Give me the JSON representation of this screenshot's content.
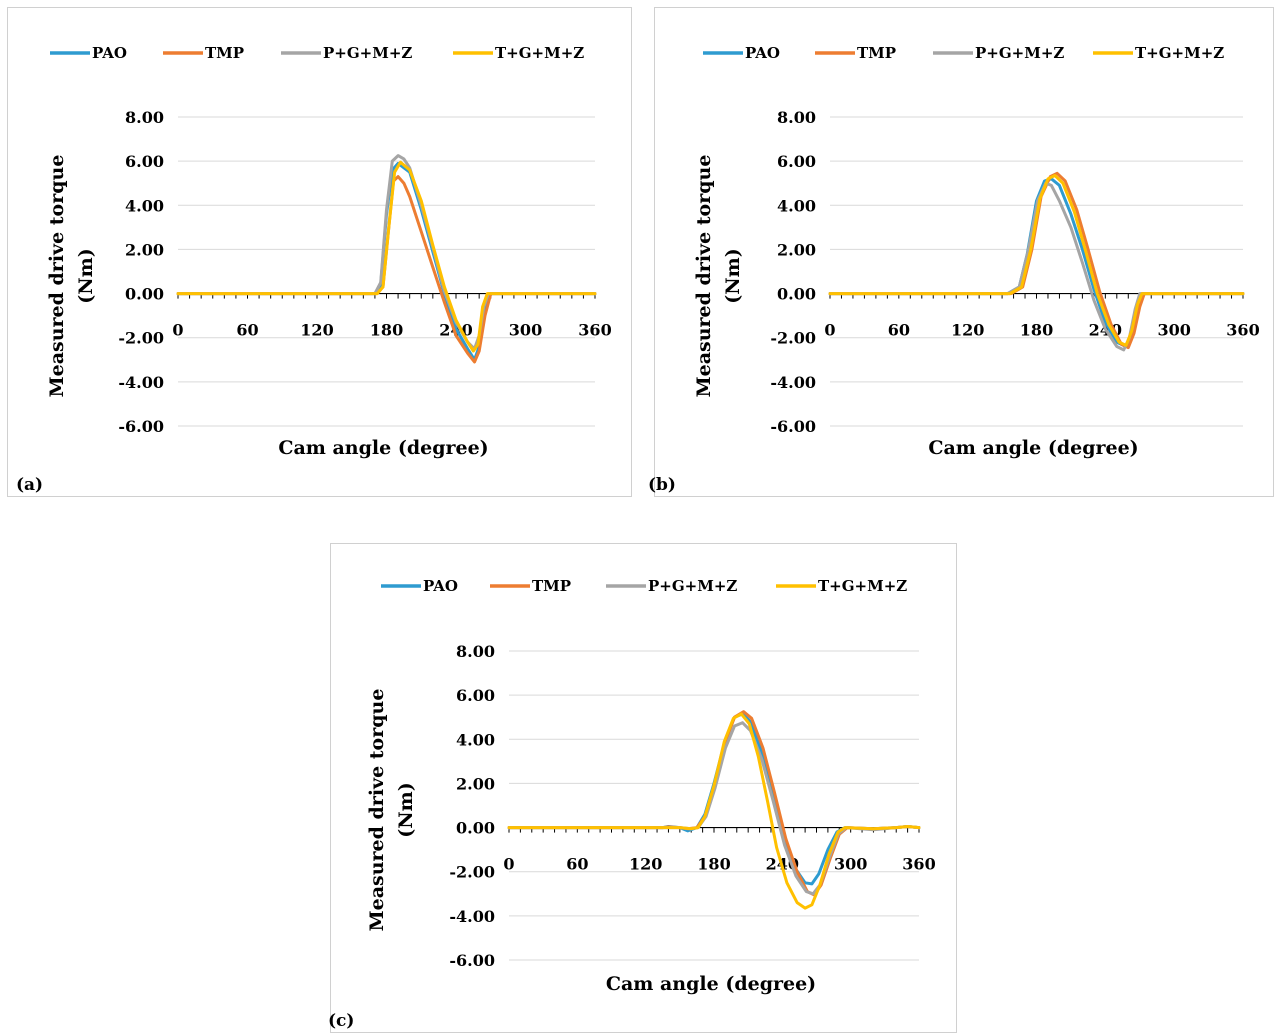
{
  "chart_data": [
    {
      "type": "line",
      "panel_label": "(a)",
      "xlabel": "Cam angle (degree)",
      "ylabel_line1": "Measured drive torque",
      "ylabel_line2": "(Nm)",
      "xlim": [
        0,
        360
      ],
      "ylim": [
        -6,
        8
      ],
      "x_ticks": [
        "0",
        "60",
        "120",
        "180",
        "240",
        "300",
        "360"
      ],
      "y_ticks": [
        "8.00",
        "6.00",
        "4.00",
        "2.00",
        "0.00",
        "-2.00",
        "-4.00",
        "-6.00"
      ],
      "grid": true,
      "legend_position": "top",
      "series": [
        {
          "name": "PAO",
          "color": "#2E9BD0",
          "points": [
            [
              0,
              0
            ],
            [
              170,
              0
            ],
            [
              175,
              0.4
            ],
            [
              180,
              3.6
            ],
            [
              185,
              5.6
            ],
            [
              190,
              5.9
            ],
            [
              200,
              5.5
            ],
            [
              210,
              3.8
            ],
            [
              220,
              1.9
            ],
            [
              230,
              0
            ],
            [
              240,
              -1.6
            ],
            [
              250,
              -2.5
            ],
            [
              256,
              -3.0
            ],
            [
              260,
              -2.4
            ],
            [
              265,
              -0.8
            ],
            [
              270,
              0
            ],
            [
              360,
              0
            ]
          ]
        },
        {
          "name": "TMP",
          "color": "#ED7D31",
          "points": [
            [
              0,
              0
            ],
            [
              172,
              0
            ],
            [
              177,
              0.3
            ],
            [
              182,
              3.0
            ],
            [
              186,
              5.1
            ],
            [
              190,
              5.3
            ],
            [
              195,
              5.0
            ],
            [
              200,
              4.4
            ],
            [
              210,
              2.8
            ],
            [
              220,
              1.2
            ],
            [
              230,
              -0.4
            ],
            [
              240,
              -1.9
            ],
            [
              250,
              -2.7
            ],
            [
              256,
              -3.1
            ],
            [
              260,
              -2.6
            ],
            [
              265,
              -1.0
            ],
            [
              270,
              0
            ],
            [
              360,
              0
            ]
          ]
        },
        {
          "name": "P+G+M+Z",
          "color": "#A5A5A5",
          "points": [
            [
              0,
              0
            ],
            [
              170,
              0
            ],
            [
              175,
              0.5
            ],
            [
              180,
              3.8
            ],
            [
              185,
              6.0
            ],
            [
              190,
              6.25
            ],
            [
              195,
              6.1
            ],
            [
              200,
              5.7
            ],
            [
              210,
              4.0
            ],
            [
              220,
              2.1
            ],
            [
              230,
              0.1
            ],
            [
              240,
              -1.3
            ],
            [
              250,
              -2.2
            ],
            [
              256,
              -2.5
            ],
            [
              260,
              -1.9
            ],
            [
              264,
              -0.6
            ],
            [
              268,
              0
            ],
            [
              360,
              0
            ]
          ]
        },
        {
          "name": "T+G+M+Z",
          "color": "#FFC000",
          "points": [
            [
              0,
              0
            ],
            [
              172,
              0
            ],
            [
              177,
              0.3
            ],
            [
              182,
              3.0
            ],
            [
              187,
              5.5
            ],
            [
              192,
              5.95
            ],
            [
              200,
              5.6
            ],
            [
              210,
              4.2
            ],
            [
              220,
              2.2
            ],
            [
              230,
              0.3
            ],
            [
              240,
              -1.2
            ],
            [
              250,
              -2.2
            ],
            [
              255,
              -2.6
            ],
            [
              259,
              -2.3
            ],
            [
              263,
              -0.6
            ],
            [
              267,
              0
            ],
            [
              360,
              0
            ]
          ]
        }
      ]
    },
    {
      "type": "line",
      "panel_label": "(b)",
      "xlabel": "Cam angle (degree)",
      "ylabel_line1": "Measured drive torque",
      "ylabel_line2": "(Nm)",
      "xlim": [
        0,
        360
      ],
      "ylim": [
        -6,
        8
      ],
      "x_ticks": [
        "0",
        "60",
        "120",
        "180",
        "240",
        "300",
        "360"
      ],
      "y_ticks": [
        "8.00",
        "6.00",
        "4.00",
        "2.00",
        "0.00",
        "-2.00",
        "-4.00",
        "-6.00"
      ],
      "grid": true,
      "legend_position": "top",
      "series": [
        {
          "name": "PAO",
          "color": "#2E9BD0",
          "points": [
            [
              0,
              0
            ],
            [
              155,
              0
            ],
            [
              165,
              0.3
            ],
            [
              172,
              1.8
            ],
            [
              180,
              4.2
            ],
            [
              187,
              5.1
            ],
            [
              193,
              5.2
            ],
            [
              200,
              4.9
            ],
            [
              210,
              3.6
            ],
            [
              220,
              2.0
            ],
            [
              230,
              0.2
            ],
            [
              240,
              -1.3
            ],
            [
              250,
              -2.2
            ],
            [
              258,
              -2.4
            ],
            [
              263,
              -1.8
            ],
            [
              268,
              -0.6
            ],
            [
              272,
              0
            ],
            [
              360,
              0
            ]
          ]
        },
        {
          "name": "TMP",
          "color": "#ED7D31",
          "points": [
            [
              0,
              0
            ],
            [
              158,
              0
            ],
            [
              168,
              0.3
            ],
            [
              176,
              2.0
            ],
            [
              184,
              4.4
            ],
            [
              192,
              5.3
            ],
            [
              198,
              5.45
            ],
            [
              205,
              5.1
            ],
            [
              215,
              3.8
            ],
            [
              225,
              2.0
            ],
            [
              235,
              0.1
            ],
            [
              245,
              -1.4
            ],
            [
              254,
              -2.3
            ],
            [
              260,
              -2.45
            ],
            [
              265,
              -1.8
            ],
            [
              270,
              -0.6
            ],
            [
              274,
              0
            ],
            [
              360,
              0
            ]
          ]
        },
        {
          "name": "P+G+M+Z",
          "color": "#A5A5A5",
          "points": [
            [
              0,
              0
            ],
            [
              155,
              0
            ],
            [
              165,
              0.3
            ],
            [
              173,
              2.0
            ],
            [
              181,
              4.2
            ],
            [
              188,
              5.0
            ],
            [
              193,
              4.9
            ],
            [
              200,
              4.2
            ],
            [
              210,
              3.0
            ],
            [
              220,
              1.4
            ],
            [
              230,
              -0.3
            ],
            [
              240,
              -1.6
            ],
            [
              250,
              -2.4
            ],
            [
              256,
              -2.55
            ],
            [
              261,
              -2.0
            ],
            [
              266,
              -0.7
            ],
            [
              270,
              0
            ],
            [
              360,
              0
            ]
          ]
        },
        {
          "name": "T+G+M+Z",
          "color": "#FFC000",
          "points": [
            [
              0,
              0
            ],
            [
              157,
              0
            ],
            [
              167,
              0.3
            ],
            [
              175,
              2.0
            ],
            [
              183,
              4.3
            ],
            [
              190,
              5.2
            ],
            [
              196,
              5.35
            ],
            [
              203,
              5.0
            ],
            [
              213,
              3.7
            ],
            [
              223,
              1.9
            ],
            [
              233,
              0.0
            ],
            [
              243,
              -1.4
            ],
            [
              252,
              -2.2
            ],
            [
              258,
              -2.35
            ],
            [
              263,
              -1.7
            ],
            [
              268,
              -0.5
            ],
            [
              272,
              0
            ],
            [
              360,
              0
            ]
          ]
        }
      ]
    },
    {
      "type": "line",
      "panel_label": "(c)",
      "xlabel": "Cam angle (degree)",
      "ylabel_line1": "Measured drive torque",
      "ylabel_line2": "(Nm)",
      "xlim": [
        0,
        360
      ],
      "ylim": [
        -6,
        8
      ],
      "x_ticks": [
        "0",
        "60",
        "120",
        "180",
        "240",
        "300",
        "360"
      ],
      "y_ticks": [
        "8.00",
        "6.00",
        "4.00",
        "2.00",
        "0.00",
        "-2.00",
        "-4.00",
        "-6.00"
      ],
      "grid": true,
      "legend_position": "top",
      "series": [
        {
          "name": "PAO",
          "color": "#2E9BD0",
          "points": [
            [
              0,
              0
            ],
            [
              135,
              0
            ],
            [
              140,
              0.05
            ],
            [
              150,
              0
            ],
            [
              157,
              -0.15
            ],
            [
              165,
              0
            ],
            [
              172,
              0.6
            ],
            [
              180,
              2.0
            ],
            [
              190,
              4.0
            ],
            [
              198,
              5.0
            ],
            [
              205,
              5.15
            ],
            [
              212,
              4.8
            ],
            [
              222,
              3.4
            ],
            [
              232,
              1.4
            ],
            [
              242,
              -0.6
            ],
            [
              252,
              -1.9
            ],
            [
              260,
              -2.5
            ],
            [
              266,
              -2.55
            ],
            [
              272,
              -2.1
            ],
            [
              280,
              -1.0
            ],
            [
              288,
              -0.2
            ],
            [
              295,
              0
            ],
            [
              320,
              -0.05
            ],
            [
              340,
              0
            ],
            [
              350,
              0.05
            ],
            [
              360,
              0
            ]
          ]
        },
        {
          "name": "TMP",
          "color": "#ED7D31",
          "points": [
            [
              0,
              0
            ],
            [
              135,
              0
            ],
            [
              140,
              0.03
            ],
            [
              150,
              0
            ],
            [
              157,
              -0.05
            ],
            [
              165,
              0
            ],
            [
              172,
              0.5
            ],
            [
              180,
              1.8
            ],
            [
              190,
              3.9
            ],
            [
              198,
              5.0
            ],
            [
              206,
              5.25
            ],
            [
              213,
              4.95
            ],
            [
              223,
              3.6
            ],
            [
              233,
              1.6
            ],
            [
              243,
              -0.5
            ],
            [
              253,
              -2.0
            ],
            [
              262,
              -2.9
            ],
            [
              268,
              -3.05
            ],
            [
              274,
              -2.6
            ],
            [
              282,
              -1.4
            ],
            [
              290,
              -0.3
            ],
            [
              297,
              0
            ],
            [
              320,
              -0.05
            ],
            [
              340,
              0
            ],
            [
              350,
              0.05
            ],
            [
              360,
              0
            ]
          ]
        },
        {
          "name": "P+G+M+Z",
          "color": "#A5A5A5",
          "points": [
            [
              0,
              0
            ],
            [
              135,
              0
            ],
            [
              150,
              0
            ],
            [
              160,
              -0.05
            ],
            [
              166,
              0
            ],
            [
              173,
              0.5
            ],
            [
              181,
              1.8
            ],
            [
              190,
              3.6
            ],
            [
              198,
              4.6
            ],
            [
              205,
              4.75
            ],
            [
              212,
              4.4
            ],
            [
              222,
              3.1
            ],
            [
              232,
              1.2
            ],
            [
              242,
              -0.8
            ],
            [
              252,
              -2.2
            ],
            [
              261,
              -2.9
            ],
            [
              267,
              -3.0
            ],
            [
              273,
              -2.6
            ],
            [
              281,
              -1.4
            ],
            [
              289,
              -0.3
            ],
            [
              296,
              0
            ],
            [
              320,
              -0.1
            ],
            [
              340,
              0
            ],
            [
              350,
              0.05
            ],
            [
              360,
              0
            ]
          ]
        },
        {
          "name": "T+G+M+Z",
          "color": "#FFC000",
          "points": [
            [
              0,
              0
            ],
            [
              135,
              0
            ],
            [
              150,
              0
            ],
            [
              160,
              -0.05
            ],
            [
              166,
              0
            ],
            [
              172,
              0.5
            ],
            [
              180,
              1.9
            ],
            [
              189,
              3.9
            ],
            [
              197,
              4.95
            ],
            [
              204,
              5.15
            ],
            [
              211,
              4.7
            ],
            [
              219,
              3.2
            ],
            [
              227,
              1.2
            ],
            [
              235,
              -0.9
            ],
            [
              244,
              -2.5
            ],
            [
              253,
              -3.4
            ],
            [
              260,
              -3.65
            ],
            [
              266,
              -3.5
            ],
            [
              273,
              -2.6
            ],
            [
              281,
              -1.2
            ],
            [
              289,
              -0.2
            ],
            [
              295,
              0
            ],
            [
              320,
              -0.05
            ],
            [
              340,
              0
            ],
            [
              350,
              0.05
            ],
            [
              360,
              0
            ]
          ]
        }
      ]
    }
  ]
}
